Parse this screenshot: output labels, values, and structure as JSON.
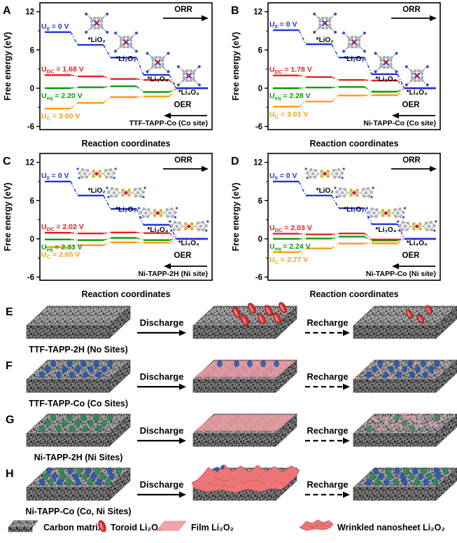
{
  "colors": {
    "line_blue": "#2433d9",
    "line_red": "#e02222",
    "line_green": "#0a9a0a",
    "line_orange": "#ff9c07",
    "site_blue": "#2d5db2",
    "site_green": "#2f8f52",
    "toroid_red": "#d63131",
    "film_pink": "#ef9b9f",
    "speckle_pink": "#f29cab",
    "wrinkle_pink": "#ed7575",
    "carbon_gray": "#9e9e9e"
  },
  "chart_data": [
    {
      "panel": "A",
      "type": "step-line",
      "title": "TTF-TAPP-Co (Co site)",
      "x_label": "Reaction coordinates",
      "y_label": "Free energy (eV)",
      "y_ticks": [
        12,
        6,
        0,
        -6
      ],
      "y_minor_ticks": [
        9,
        3,
        -3
      ],
      "ylim": [
        -6.5,
        13.4
      ],
      "direction_labels": {
        "forward": "ORR",
        "reverse": "OER"
      },
      "species_labels": [
        "*LiO₂",
        "*Li₂O₂",
        "*Li₃O₄",
        "*Li₄O₄"
      ],
      "molecule_style": "porphyrin",
      "series": [
        {
          "name": "U0 = 0 V",
          "pre": "U",
          "sub": "0",
          "post": " = 0 V",
          "color": "#2433d9",
          "label_side": "above",
          "levels": [
            8.8,
            6.8,
            4.8,
            2.1,
            0
          ]
        },
        {
          "name": "UDC = 1.68 V",
          "pre": "U",
          "sub": "DC",
          "post": " = 1.68 V",
          "color": "#e02222",
          "label_side": "above",
          "levels": [
            2.05,
            1.85,
            1.45,
            1.3,
            0
          ]
        },
        {
          "name": "Ueq = 2.20 V",
          "pre": "U",
          "sub": "eq",
          "post": " = 2.20 V",
          "color": "#0a9a0a",
          "label_side": "below",
          "levels": [
            0,
            0.15,
            0.3,
            -0.6,
            0
          ]
        },
        {
          "name": "UC = 3.00 V",
          "pre": "U",
          "sub": "C",
          "post": " = 3.00 V",
          "color": "#ff9c07",
          "label_side": "below",
          "levels": [
            -3.2,
            -2.3,
            -1.4,
            -1.3,
            0
          ]
        }
      ]
    },
    {
      "panel": "B",
      "type": "step-line",
      "title": "Ni-TAPP-Co (Co site)",
      "x_label": "Reaction coordinates",
      "y_label": "Free energy (eV)",
      "y_ticks": [
        12,
        6,
        0,
        -6
      ],
      "y_minor_ticks": [
        9,
        3,
        -3
      ],
      "ylim": [
        -6.5,
        13.4
      ],
      "direction_labels": {
        "forward": "ORR",
        "reverse": "OER"
      },
      "species_labels": [
        "*LiO₂",
        "*Li₂O₂",
        "*Li₃O₄",
        "*Li₄O₄"
      ],
      "molecule_style": "porphyrin",
      "series": [
        {
          "name": "U0 = 0 V",
          "pre": "U",
          "sub": "0",
          "post": " = 0 V",
          "color": "#2433d9",
          "label_side": "above",
          "levels": [
            9.1,
            6.9,
            4.8,
            2.2,
            0
          ]
        },
        {
          "name": "UDC = 1.78 V",
          "pre": "U",
          "sub": "DC",
          "post": " = 1.78 V",
          "color": "#e02222",
          "label_side": "above",
          "levels": [
            2.0,
            1.75,
            1.3,
            1.2,
            0
          ]
        },
        {
          "name": "Ueq = 2.28 V",
          "pre": "U",
          "sub": "eq",
          "post": " = 2.28 V",
          "color": "#0a9a0a",
          "label_side": "below",
          "levels": [
            0,
            0.1,
            0.2,
            -0.55,
            0
          ]
        },
        {
          "name": "UC = 3.01 V",
          "pre": "U",
          "sub": "C",
          "post": " = 3.01 V",
          "color": "#ff9c07",
          "label_side": "below",
          "levels": [
            -2.9,
            -2.1,
            -1.15,
            -1.1,
            0
          ]
        }
      ]
    },
    {
      "panel": "C",
      "type": "step-line",
      "title": "Ni-TAPP-2H (Ni site)",
      "x_label": "Reaction coordinates",
      "y_label": "Free energy (eV)",
      "y_ticks": [
        12,
        6,
        0,
        -6
      ],
      "y_minor_ticks": [
        9,
        3,
        -3
      ],
      "ylim": [
        -6.5,
        13.4
      ],
      "direction_labels": {
        "forward": "ORR",
        "reverse": "OER"
      },
      "species_labels": [
        "*LiO₂",
        "*Li₂O₂",
        "*Li₃O₄",
        "*Li₄O₄"
      ],
      "molecule_style": "bowtie",
      "series": [
        {
          "name": "U0 = 0 V",
          "pre": "U",
          "sub": "0",
          "post": " = 0 V",
          "color": "#2433d9",
          "label_side": "above",
          "levels": [
            9.0,
            6.8,
            4.7,
            2.2,
            0
          ]
        },
        {
          "name": "UDC = 2.02 V",
          "pre": "U",
          "sub": "DC",
          "post": " = 2.02 V",
          "color": "#e02222",
          "label_side": "above",
          "levels": [
            0.95,
            0.85,
            1.0,
            0.9,
            0
          ]
        },
        {
          "name": "Ueq = 2.33 V",
          "pre": "U",
          "sub": "eq",
          "post": " = 2.33 V",
          "color": "#0a9a0a",
          "label_side": "below",
          "levels": [
            -0.1,
            -0.2,
            0.15,
            -0.2,
            0
          ]
        },
        {
          "name": "UC = 2.65 V",
          "pre": "U",
          "sub": "C",
          "post": " = 2.65 V",
          "color": "#ff9c07",
          "label_side": "below",
          "levels": [
            -1.3,
            -1.0,
            -0.55,
            -0.6,
            0
          ]
        }
      ]
    },
    {
      "panel": "D",
      "type": "step-line",
      "title": "Ni-TAPP-Co (Ni site)",
      "x_label": "Reaction coordinates",
      "y_label": "Free energy (eV)",
      "y_ticks": [
        12,
        6,
        0,
        -6
      ],
      "y_minor_ticks": [
        9,
        3,
        -3
      ],
      "ylim": [
        -6.5,
        13.4
      ],
      "direction_labels": {
        "forward": "ORR",
        "reverse": "OER"
      },
      "species_labels": [
        "*LiO₂",
        "*Li₂O₂",
        "*Li₃O₄",
        "*Li₄O₄"
      ],
      "molecule_style": "bowtie",
      "series": [
        {
          "name": "U0 = 0 V",
          "pre": "U",
          "sub": "0",
          "post": " = 0 V",
          "color": "#2433d9",
          "label_side": "above",
          "levels": [
            9.0,
            6.8,
            4.8,
            2.3,
            0
          ]
        },
        {
          "name": "UDC = 2.03 V",
          "pre": "U",
          "sub": "DC",
          "post": " = 2.03 V",
          "color": "#e02222",
          "label_side": "above",
          "levels": [
            0.8,
            0.7,
            0.85,
            -0.1,
            0
          ]
        },
        {
          "name": "Ueq = 2.24 V",
          "pre": "U",
          "sub": "eq",
          "post": " = 2.24 V",
          "color": "#0a9a0a",
          "label_side": "below",
          "levels": [
            0,
            0.05,
            0.35,
            -0.25,
            0
          ]
        },
        {
          "name": "UC = 2.77 V",
          "pre": "U",
          "sub": "C",
          "post": " = 2.77 V",
          "color": "#ff9c07",
          "label_side": "below",
          "levels": [
            -2.1,
            -1.5,
            -0.75,
            -0.7,
            0
          ]
        }
      ]
    }
  ],
  "schematic": {
    "rows": [
      {
        "letter": "E",
        "material": "TTF-TAPP-2H (No Sites)",
        "arrow1": "Discharge",
        "arrow2": "Recharge",
        "sites": "none",
        "discharged": "toroid-li2o2",
        "recharged": "few-toroids"
      },
      {
        "letter": "F",
        "material": "TTF-TAPP-Co (Co Sites)",
        "arrow1": "Discharge",
        "arrow2": "Recharge",
        "sites": "blue",
        "discharged": "film-li2o2",
        "recharged": "sites-with-residue"
      },
      {
        "letter": "G",
        "material": "Ni-TAPP-2H (Ni Sites)",
        "arrow1": "Discharge",
        "arrow2": "Recharge",
        "sites": "green",
        "discharged": "film-li2o2",
        "recharged": "residue-sparse-sites"
      },
      {
        "letter": "H",
        "material": "Ni-TAPP-Co (Co, Ni Sites)",
        "arrow1": "Discharge",
        "arrow2": "Recharge",
        "sites": "mixed",
        "discharged": "wrinkled-nanosheet-li2o2",
        "recharged": "sites-restored"
      }
    ]
  },
  "legend": {
    "items": [
      {
        "icon": "carbon-matrix-icon",
        "label": "Carbon matrix"
      },
      {
        "icon": "toroid-li2o2-icon",
        "label": "Toroid Li₂O₂"
      },
      {
        "icon": "film-li2o2-icon",
        "label": "Film Li₂O₂"
      },
      {
        "icon": "wrinkled-nanosheet-icon",
        "label": "Wrinkled nanosheet Li₂O₂"
      }
    ]
  }
}
